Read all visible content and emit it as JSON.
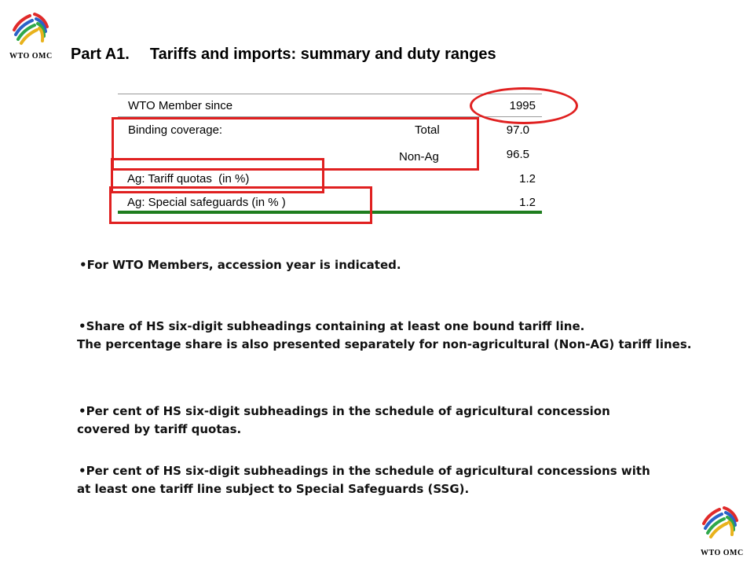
{
  "logo": {
    "text": "WTO OMC"
  },
  "title": {
    "part": "Part A1.",
    "text": "Tariffs and imports: summary and duty ranges"
  },
  "table": {
    "member_label": "WTO Member since",
    "member_value": "1995",
    "binding_label": "Binding coverage:",
    "total_label": "Total",
    "total_value": "97.0",
    "nonag_label": "Non-Ag",
    "nonag_value": "96.5",
    "quota_label": "Ag: Tariff quotas  (in %)",
    "quota_value": "1.2",
    "ssg_label": "Ag: Special safeguards (in % )",
    "ssg_value": "1.2"
  },
  "notes": {
    "n1": "•For WTO Members, accession year is indicated.",
    "n2_l1": "•Share of HS six-digit subheadings containing at least one bound tariff line.",
    "n2_l2": "The percentage share  is also presented separately for non-agricultural (Non-AG) tariff lines.",
    "n3_l1": "•Per cent of HS six-digit subheadings in the schedule of agricultural concession",
    "n3_l2": "covered by tariff quotas.",
    "n4_l1": "•Per cent of HS six-digit subheadings in the schedule of agricultural concessions with",
    "n4_l2": "at least one tariff line subject to Special Safeguards (SSG)."
  },
  "colors": {
    "highlight": "#e02020",
    "rule_green": "#1e7d1e",
    "rule_gray": "#9a9a9a"
  }
}
